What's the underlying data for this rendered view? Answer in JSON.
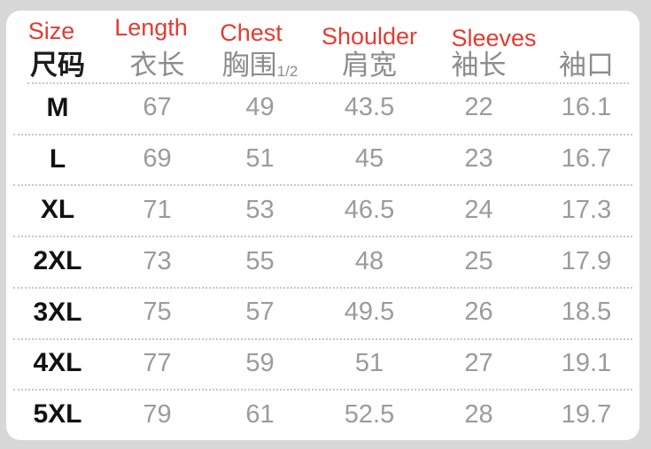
{
  "colors": {
    "background": "#d7d7d7",
    "card": "#ffffff",
    "accent_red": "#e23c31",
    "header_gray": "#8c8c8c",
    "value_gray": "#9b9b9b",
    "size_black": "#111111"
  },
  "size_chart": {
    "english_labels": [
      "Size",
      "Length",
      "Chest",
      "Shoulder",
      "Sleeves"
    ],
    "headers_zh": {
      "size": "尺码",
      "length": "衣长",
      "chest": "胸围",
      "chest_fraction": "1/2",
      "shoulder": "肩宽",
      "sleeves": "袖长",
      "cuff": "袖口"
    },
    "rows": [
      {
        "size": "M",
        "length": "67",
        "chest": "49",
        "shoulder": "43.5",
        "sleeves": "22",
        "cuff": "16.1"
      },
      {
        "size": "L",
        "length": "69",
        "chest": "51",
        "shoulder": "45",
        "sleeves": "23",
        "cuff": "16.7"
      },
      {
        "size": "XL",
        "length": "71",
        "chest": "53",
        "shoulder": "46.5",
        "sleeves": "24",
        "cuff": "17.3"
      },
      {
        "size": "2XL",
        "length": "73",
        "chest": "55",
        "shoulder": "48",
        "sleeves": "25",
        "cuff": "17.9"
      },
      {
        "size": "3XL",
        "length": "75",
        "chest": "57",
        "shoulder": "49.5",
        "sleeves": "26",
        "cuff": "18.5"
      },
      {
        "size": "4XL",
        "length": "77",
        "chest": "59",
        "shoulder": "51",
        "sleeves": "27",
        "cuff": "19.1"
      },
      {
        "size": "5XL",
        "length": "79",
        "chest": "61",
        "shoulder": "52.5",
        "sleeves": "28",
        "cuff": "19.7"
      }
    ]
  }
}
